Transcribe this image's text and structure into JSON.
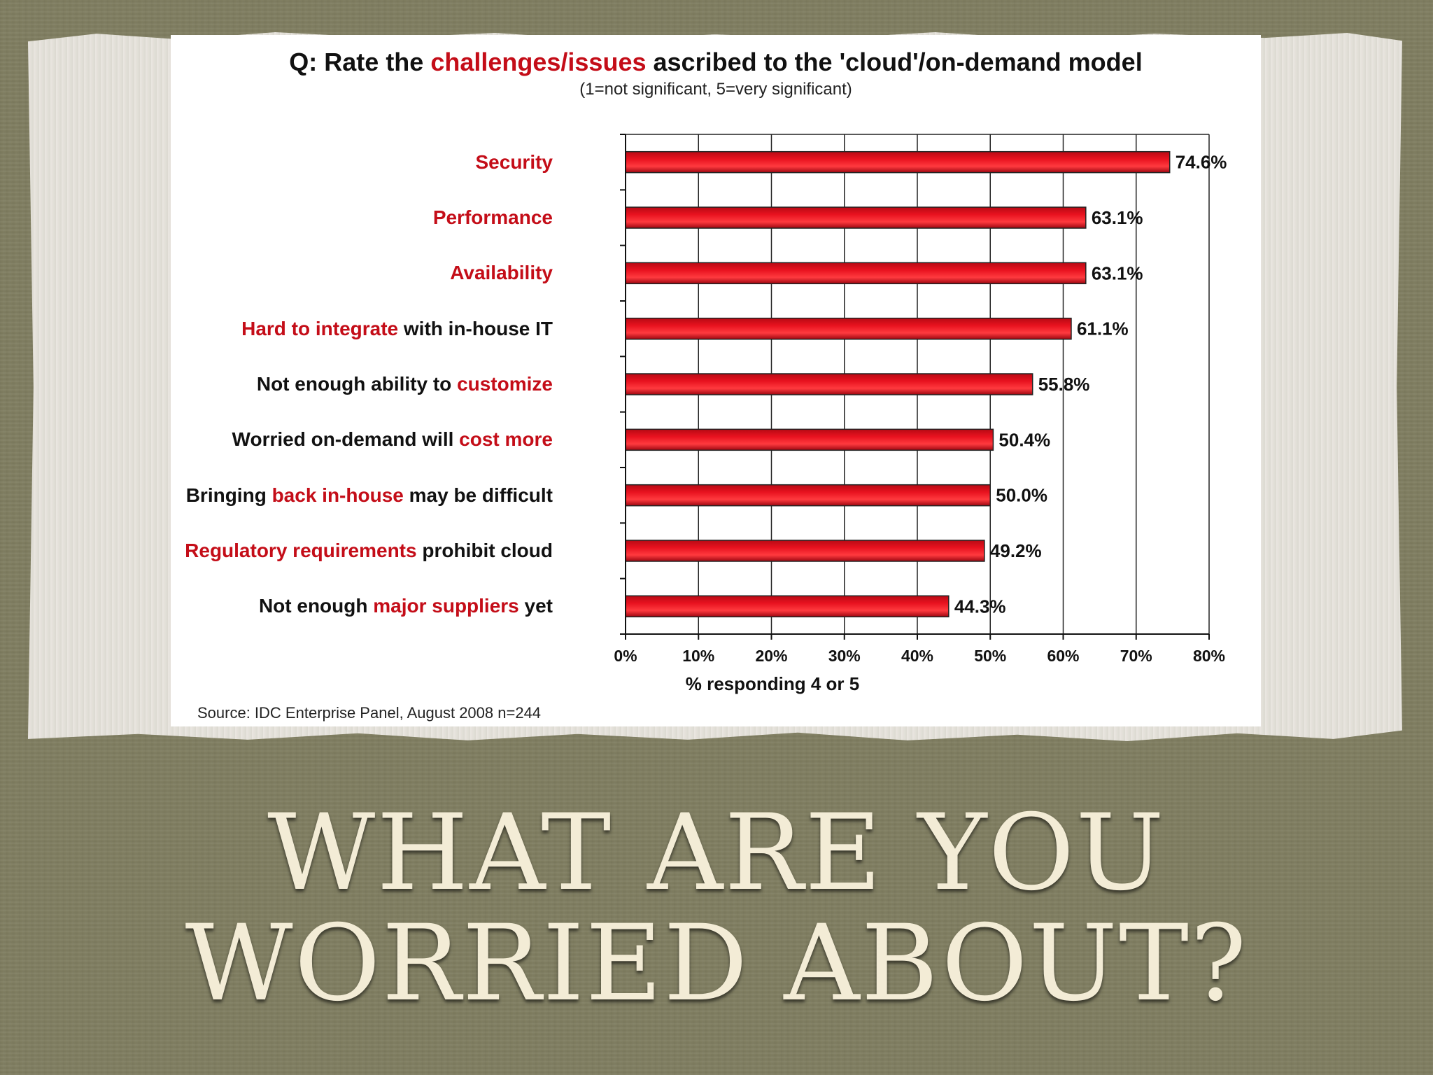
{
  "slide": {
    "title": "WHAT ARE YOU WORRIED ABOUT?"
  },
  "chart_data": {
    "type": "bar",
    "orientation": "horizontal",
    "title": {
      "prefix": "Q: Rate the ",
      "highlight": "challenges/issues",
      "suffix": " ascribed to the 'cloud'/on-demand model"
    },
    "subtitle": "(1=not significant, 5=very significant)",
    "categories": [
      {
        "parts": [
          {
            "text": "Security",
            "hl": true
          }
        ]
      },
      {
        "parts": [
          {
            "text": "Performance",
            "hl": true
          }
        ]
      },
      {
        "parts": [
          {
            "text": "Availability",
            "hl": true
          }
        ]
      },
      {
        "parts": [
          {
            "text": "Hard to integrate",
            "hl": true
          },
          {
            "text": " with in-house IT",
            "hl": false
          }
        ]
      },
      {
        "parts": [
          {
            "text": "Not enough ability to ",
            "hl": false
          },
          {
            "text": "customize",
            "hl": true
          }
        ]
      },
      {
        "parts": [
          {
            "text": "Worried on-demand will ",
            "hl": false
          },
          {
            "text": "cost more",
            "hl": true
          }
        ]
      },
      {
        "parts": [
          {
            "text": "Bringing ",
            "hl": false
          },
          {
            "text": "back in-house",
            "hl": true
          },
          {
            "text": " may be difficult",
            "hl": false
          }
        ]
      },
      {
        "parts": [
          {
            "text": "Regulatory requirements",
            "hl": true
          },
          {
            "text": " prohibit cloud",
            "hl": false
          }
        ]
      },
      {
        "parts": [
          {
            "text": "Not enough ",
            "hl": false
          },
          {
            "text": "major suppliers",
            "hl": true
          },
          {
            "text": " yet",
            "hl": false
          }
        ]
      }
    ],
    "values": [
      74.6,
      63.1,
      63.1,
      61.1,
      55.8,
      50.4,
      50.0,
      49.2,
      44.3
    ],
    "value_labels": [
      "74.6%",
      "63.1%",
      "63.1%",
      "61.1%",
      "55.8%",
      "50.4%",
      "50.0%",
      "49.2%",
      "44.3%"
    ],
    "xlim": [
      0,
      80
    ],
    "xticks": [
      0,
      10,
      20,
      30,
      40,
      50,
      60,
      70,
      80
    ],
    "xtick_labels": [
      "0%",
      "10%",
      "20%",
      "30%",
      "40%",
      "50%",
      "60%",
      "70%",
      "80%"
    ],
    "xlabel": "% responding 4 or 5",
    "grid": true,
    "bar_color": "#e8121f",
    "highlight_color": "#c40d18",
    "source": "Source: IDC Enterprise Panel, August 2008  n=244"
  }
}
